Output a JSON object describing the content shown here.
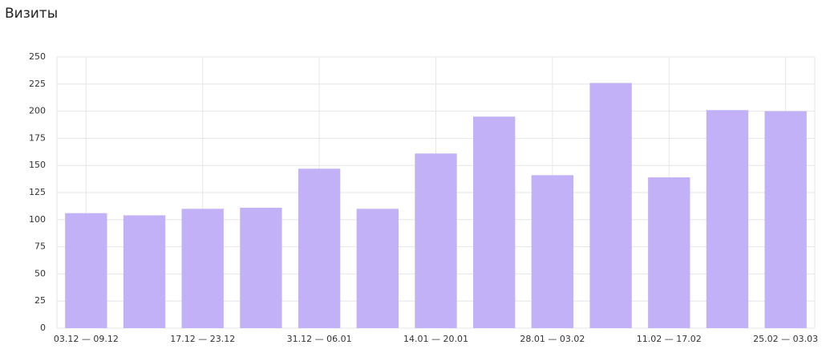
{
  "chart_data": {
    "type": "bar",
    "title": "Визиты",
    "categories": [
      "03.12 — 09.12",
      null,
      "17.12 — 23.12",
      null,
      "31.12 — 06.01",
      null,
      "14.01 — 20.01",
      null,
      "28.01 — 03.02",
      null,
      "11.02 — 17.02",
      null,
      "25.02 — 03.03"
    ],
    "values": [
      106,
      104,
      110,
      111,
      147,
      110,
      161,
      195,
      141,
      226,
      139,
      201,
      200
    ],
    "color": "#c3b1f7",
    "ylim": [
      0,
      250
    ],
    "yticks": [
      0,
      25,
      50,
      75,
      100,
      125,
      150,
      175,
      200,
      225,
      250
    ],
    "grid": true
  }
}
